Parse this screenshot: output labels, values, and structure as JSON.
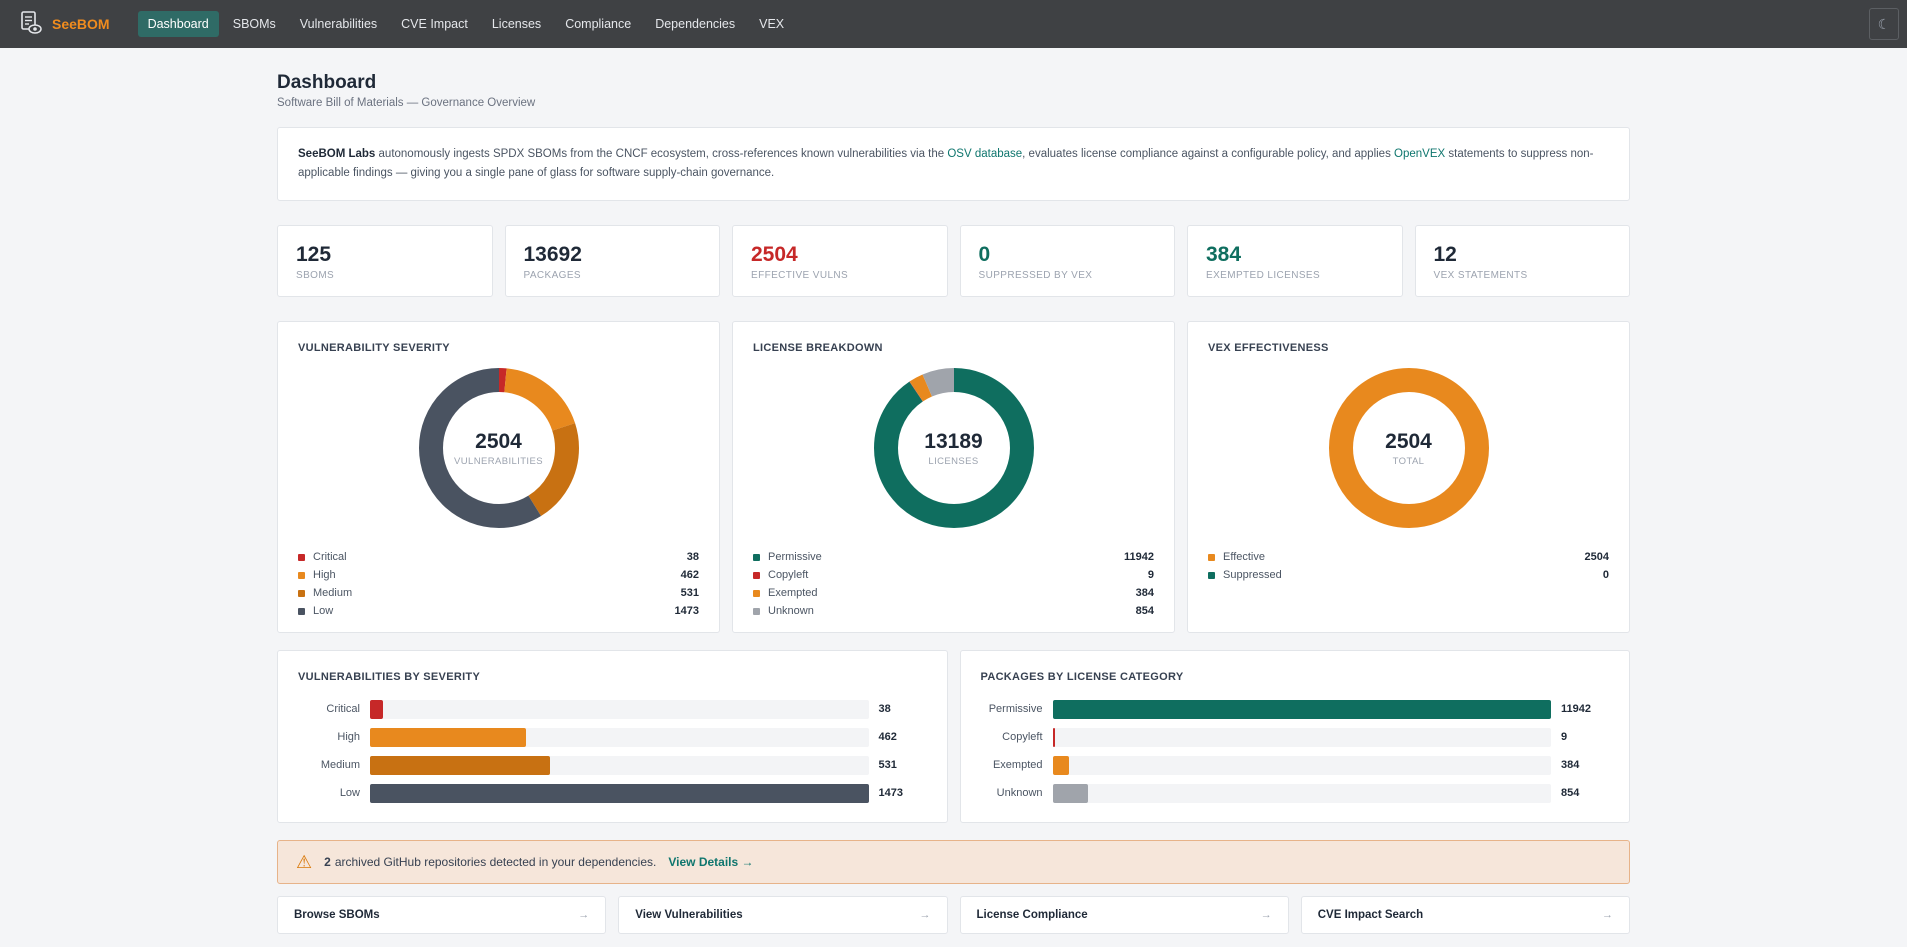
{
  "app": {
    "name": "SeeBOM",
    "nav": [
      {
        "label": "Dashboard",
        "active": true
      },
      {
        "label": "SBOMs"
      },
      {
        "label": "Vulnerabilities"
      },
      {
        "label": "CVE Impact"
      },
      {
        "label": "Licenses"
      },
      {
        "label": "Compliance"
      },
      {
        "label": "Dependencies"
      },
      {
        "label": "VEX"
      }
    ],
    "theme_toggle_icon": "☾"
  },
  "page": {
    "title": "Dashboard",
    "subtitle": "Software Bill of Materials — Governance Overview"
  },
  "intro": {
    "org": "SeeBOM Labs",
    "text_1": " autonomously ingests SPDX SBOMs from the CNCF ecosystem, cross-references known vulnerabilities via the ",
    "link_1": "OSV database",
    "text_2": ", evaluates license compliance against a configurable policy, and applies ",
    "link_2": "OpenVEX",
    "text_3": " statements to suppress non-applicable findings — giving you a single pane of glass for software supply-chain governance."
  },
  "stats": [
    {
      "value": "125",
      "label": "SBOMs",
      "color": "#1f2937"
    },
    {
      "value": "13692",
      "label": "Packages",
      "color": "#1f2937"
    },
    {
      "value": "2504",
      "label": "Effective Vulns",
      "color": "#c62828"
    },
    {
      "value": "0",
      "label": "Suppressed by VEX",
      "color": "#0f6e5f"
    },
    {
      "value": "384",
      "label": "Exempted Licenses",
      "color": "#0f6e5f"
    },
    {
      "value": "12",
      "label": "VEX Statements",
      "color": "#1f2937"
    }
  ],
  "donuts": [
    {
      "title": "Vulnerability Severity",
      "center_value": "2504",
      "center_label": "Vulnerabilities",
      "items": [
        {
          "name": "Critical",
          "value": 38,
          "color": "#c62828"
        },
        {
          "name": "High",
          "value": 462,
          "color": "#e8891e"
        },
        {
          "name": "Medium",
          "value": 531,
          "color": "#c87112"
        },
        {
          "name": "Low",
          "value": 1473,
          "color": "#4a5361"
        }
      ]
    },
    {
      "title": "License Breakdown",
      "center_value": "13189",
      "center_label": "Licenses",
      "items": [
        {
          "name": "Permissive",
          "value": 11942,
          "color": "#0f6e5f"
        },
        {
          "name": "Copyleft",
          "value": 9,
          "color": "#c62828"
        },
        {
          "name": "Exempted",
          "value": 384,
          "color": "#e8891e"
        },
        {
          "name": "Unknown",
          "value": 854,
          "color": "#a0a4ab"
        }
      ]
    },
    {
      "title": "VEX Effectiveness",
      "center_value": "2504",
      "center_label": "Total",
      "items": [
        {
          "name": "Effective",
          "value": 2504,
          "color": "#e8891e"
        },
        {
          "name": "Suppressed",
          "value": 0,
          "color": "#0f6e5f"
        }
      ]
    }
  ],
  "bar_charts": [
    {
      "title": "Vulnerabilities by Severity",
      "max": 1473,
      "items": [
        {
          "name": "Critical",
          "value": 38,
          "color": "#c62828"
        },
        {
          "name": "High",
          "value": 462,
          "color": "#e8891e"
        },
        {
          "name": "Medium",
          "value": 531,
          "color": "#c87112"
        },
        {
          "name": "Low",
          "value": 1473,
          "color": "#4a5361"
        }
      ]
    },
    {
      "title": "Packages by License Category",
      "max": 11942,
      "items": [
        {
          "name": "Permissive",
          "value": 11942,
          "color": "#0f6e5f"
        },
        {
          "name": "Copyleft",
          "value": 9,
          "color": "#c62828"
        },
        {
          "name": "Exempted",
          "value": 384,
          "color": "#e8891e"
        },
        {
          "name": "Unknown",
          "value": 854,
          "color": "#a0a4ab"
        }
      ]
    }
  ],
  "alert": {
    "icon": "⚠",
    "count": "2",
    "text": "archived GitHub repositories detected in your dependencies.",
    "link": "View Details →"
  },
  "quick_links": [
    {
      "label": "Browse SBOMs",
      "arrow": "→"
    },
    {
      "label": "View Vulnerabilities",
      "arrow": "→"
    },
    {
      "label": "License Compliance",
      "arrow": "→"
    },
    {
      "label": "CVE Impact Search",
      "arrow": "→"
    }
  ]
}
